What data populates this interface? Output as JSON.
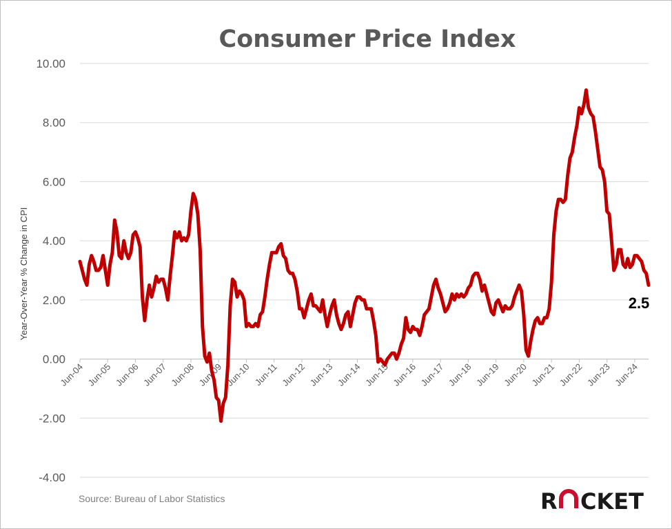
{
  "chart_data": {
    "type": "line",
    "title": "Consumer Price Index",
    "ylabel": "Year-Over-Year % Change in CPI",
    "xlabel": "",
    "ylim": [
      -4,
      10
    ],
    "yticks": [
      "-4.00",
      "-2.00",
      "0.00",
      "2.00",
      "4.00",
      "6.00",
      "8.00",
      "10.00"
    ],
    "xticks": [
      "Jun-04",
      "Jun-05",
      "Jun-06",
      "Jun-07",
      "Jun-08",
      "Jun-09",
      "Jun-10",
      "Jun-11",
      "Jun-12",
      "Jun-13",
      "Jun-14",
      "Jun-15",
      "Jun-16",
      "Jun-17",
      "Jun-18",
      "Jun-19",
      "Jun-20",
      "Jun-21",
      "Jun-22",
      "Jun-23",
      "Jun-24"
    ],
    "grid": true,
    "legend": "none",
    "line_color": "#c00000",
    "series": [
      {
        "start": "Jun-04",
        "frequency": "monthly",
        "values": [
          3.3,
          3.0,
          2.7,
          2.5,
          3.2,
          3.5,
          3.3,
          3.0,
          3.0,
          3.1,
          3.5,
          3.0,
          2.5,
          3.2,
          3.6,
          4.7,
          4.3,
          3.5,
          3.4,
          4.0,
          3.6,
          3.4,
          3.6,
          4.2,
          4.3,
          4.1,
          3.8,
          2.1,
          1.3,
          2.0,
          2.5,
          2.1,
          2.4,
          2.8,
          2.6,
          2.7,
          2.7,
          2.4,
          2.0,
          2.8,
          3.5,
          4.3,
          4.1,
          4.3,
          4.0,
          4.1,
          4.0,
          4.2,
          5.0,
          5.6,
          5.4,
          4.9,
          3.7,
          1.1,
          0.1,
          -0.1,
          0.2,
          -0.4,
          -0.7,
          -1.3,
          -1.4,
          -2.1,
          -1.5,
          -1.3,
          -0.2,
          1.8,
          2.7,
          2.6,
          2.1,
          2.3,
          2.2,
          2.0,
          1.1,
          1.2,
          1.1,
          1.1,
          1.2,
          1.1,
          1.5,
          1.6,
          2.1,
          2.7,
          3.2,
          3.6,
          3.6,
          3.6,
          3.8,
          3.9,
          3.5,
          3.4,
          3.0,
          2.9,
          2.9,
          2.7,
          2.3,
          1.7,
          1.7,
          1.4,
          1.7,
          2.0,
          2.2,
          1.8,
          1.8,
          1.7,
          1.6,
          2.0,
          1.5,
          1.1,
          1.5,
          1.8,
          2.0,
          1.5,
          1.2,
          1.0,
          1.2,
          1.5,
          1.6,
          1.1,
          1.5,
          1.9,
          2.1,
          2.1,
          2.0,
          2.0,
          1.7,
          1.7,
          1.7,
          1.3,
          0.8,
          -0.1,
          0.0,
          -0.1,
          -0.2,
          0.0,
          0.1,
          0.2,
          0.2,
          0.0,
          0.2,
          0.5,
          0.7,
          1.4,
          1.0,
          0.9,
          1.1,
          1.0,
          1.0,
          0.8,
          1.1,
          1.5,
          1.6,
          1.7,
          2.1,
          2.5,
          2.7,
          2.4,
          2.2,
          1.9,
          1.6,
          1.7,
          1.9,
          2.2,
          2.0,
          2.2,
          2.1,
          2.2,
          2.1,
          2.2,
          2.4,
          2.5,
          2.8,
          2.9,
          2.9,
          2.7,
          2.3,
          2.5,
          2.2,
          1.9,
          1.6,
          1.5,
          1.9,
          2.0,
          1.8,
          1.6,
          1.8,
          1.7,
          1.7,
          1.8,
          2.1,
          2.3,
          2.5,
          2.3,
          1.5,
          0.3,
          0.1,
          0.6,
          1.0,
          1.3,
          1.4,
          1.2,
          1.2,
          1.4,
          1.4,
          1.7,
          2.6,
          4.2,
          5.0,
          5.4,
          5.4,
          5.3,
          5.4,
          6.2,
          6.8,
          7.0,
          7.5,
          7.9,
          8.5,
          8.3,
          8.6,
          9.1,
          8.5,
          8.3,
          8.2,
          7.7,
          7.1,
          6.5,
          6.4,
          6.0,
          5.0,
          4.9,
          4.0,
          3.0,
          3.2,
          3.7,
          3.7,
          3.2,
          3.1,
          3.4,
          3.1,
          3.2,
          3.5,
          3.5,
          3.4,
          3.3,
          3.0,
          2.9,
          2.5
        ]
      }
    ],
    "annotation": "2.5"
  },
  "source": "Source: Bureau of Labor Statistics",
  "logo": {
    "left_letter": "R",
    "right_letters": "CKET",
    "mark_color": "#c8102e"
  }
}
